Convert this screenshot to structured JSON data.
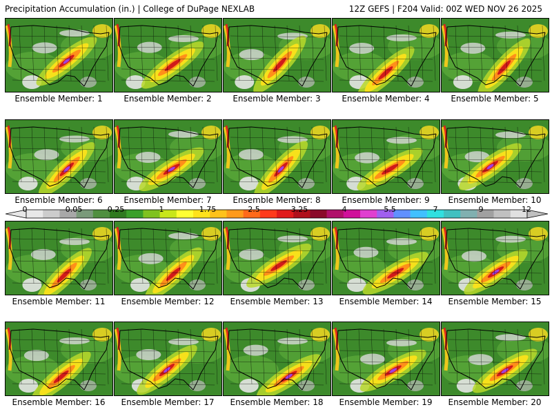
{
  "header": {
    "title_left": "Precipitation Accumulation (in.) | College of DuPage NEXLAB",
    "title_right": "12Z GEFS | F204 Valid: 00Z WED NOV 26 2025"
  },
  "panels": [
    {
      "label": "Ensemble Member: 1"
    },
    {
      "label": "Ensemble Member: 2"
    },
    {
      "label": "Ensemble Member: 3"
    },
    {
      "label": "Ensemble Member: 4"
    },
    {
      "label": "Ensemble Member: 5"
    },
    {
      "label": "Ensemble Member: 6"
    },
    {
      "label": "Ensemble Member: 7"
    },
    {
      "label": "Ensemble Member: 8"
    },
    {
      "label": "Ensemble Member: 9"
    },
    {
      "label": "Ensemble Member: 10"
    },
    {
      "label": "Ensemble Member: 11"
    },
    {
      "label": "Ensemble Member: 12"
    },
    {
      "label": "Ensemble Member: 13"
    },
    {
      "label": "Ensemble Member: 14"
    },
    {
      "label": "Ensemble Member: 15"
    },
    {
      "label": "Ensemble Member: 16"
    },
    {
      "label": "Ensemble Member: 17"
    },
    {
      "label": "Ensemble Member: 18"
    },
    {
      "label": "Ensemble Member: 19"
    },
    {
      "label": "Ensemble Member: 20"
    }
  ],
  "colorbar": {
    "tick_labels": [
      "0",
      "0.05",
      "0.25",
      "1",
      "1.75",
      "2.5",
      "3.25",
      "4",
      "5.5",
      "7",
      "9",
      "12"
    ],
    "colors": [
      "#e8e8e8",
      "#cccccc",
      "#a8a8a8",
      "#7a9a7a",
      "#4f8f3f",
      "#2f7a1f",
      "#3aa02a",
      "#7fc21f",
      "#c8e61a",
      "#ffff33",
      "#ffe21a",
      "#ffc21a",
      "#ff9a1a",
      "#ff6a1a",
      "#ff3a1a",
      "#e01a1a",
      "#b0101a",
      "#8a0a2a",
      "#b0106a",
      "#d0109a",
      "#e040d0",
      "#a060f0",
      "#6090ff",
      "#40c0ff",
      "#30e0e0",
      "#40c0c0",
      "#80b0b0",
      "#a0a0a0",
      "#c0c0c0",
      "#e0e0e0"
    ]
  }
}
